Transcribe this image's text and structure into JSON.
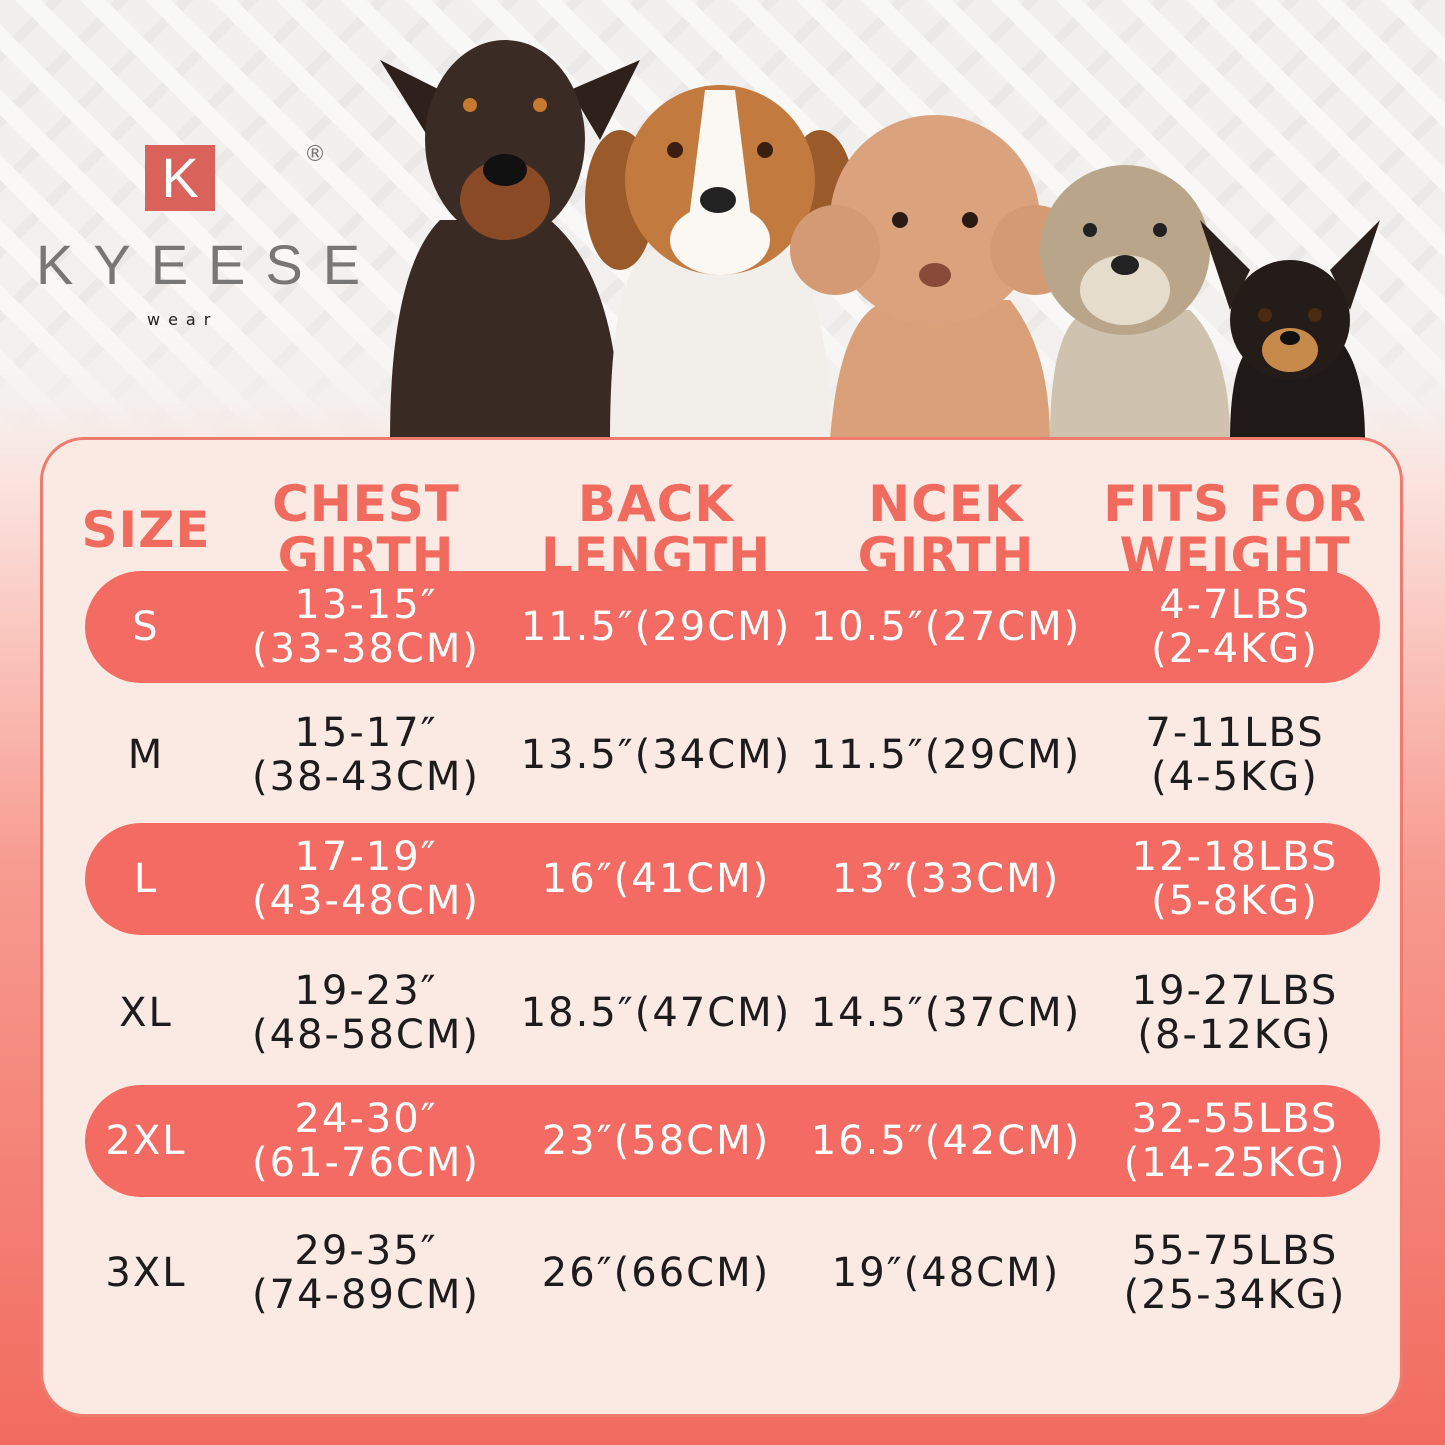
{
  "brand": {
    "letter": "K",
    "name": "KYEESE",
    "sub": "wear",
    "reg": "®",
    "accent": "#f36b62"
  },
  "dogs": [
    "doberman",
    "beagle",
    "poodle",
    "terrier",
    "chihuahua"
  ],
  "table": {
    "headers": [
      "SIZE",
      "CHEST\nGIRTH",
      "BACK\nLENGTH",
      "NCEK\nGIRTH",
      "FITS FOR\nWEIGHT"
    ],
    "rows": [
      {
        "size": "S",
        "chest": "13-15″\n(33-38CM)",
        "back": "11.5″(29CM)",
        "neck": "10.5″(27CM)",
        "weight": "4-7LBS\n(2-4KG)",
        "highlight": true
      },
      {
        "size": "M",
        "chest": "15-17″\n(38-43CM)",
        "back": "13.5″(34CM)",
        "neck": "11.5″(29CM)",
        "weight": "7-11LBS\n(4-5KG)",
        "highlight": false
      },
      {
        "size": "L",
        "chest": "17-19″\n(43-48CM)",
        "back": "16″(41CM)",
        "neck": "13″(33CM)",
        "weight": "12-18LBS\n(5-8KG)",
        "highlight": true
      },
      {
        "size": "XL",
        "chest": "19-23″\n(48-58CM)",
        "back": "18.5″(47CM)",
        "neck": "14.5″(37CM)",
        "weight": "19-27LBS\n(8-12KG)",
        "highlight": false
      },
      {
        "size": "2XL",
        "chest": "24-30″\n(61-76CM)",
        "back": "23″(58CM)",
        "neck": "16.5″(42CM)",
        "weight": "32-55LBS\n(14-25KG)",
        "highlight": true
      },
      {
        "size": "3XL",
        "chest": "29-35″\n(74-89CM)",
        "back": "26″(66CM)",
        "neck": "19″(48CM)",
        "weight": "55-75LBS\n(25-34KG)",
        "highlight": false
      }
    ]
  }
}
